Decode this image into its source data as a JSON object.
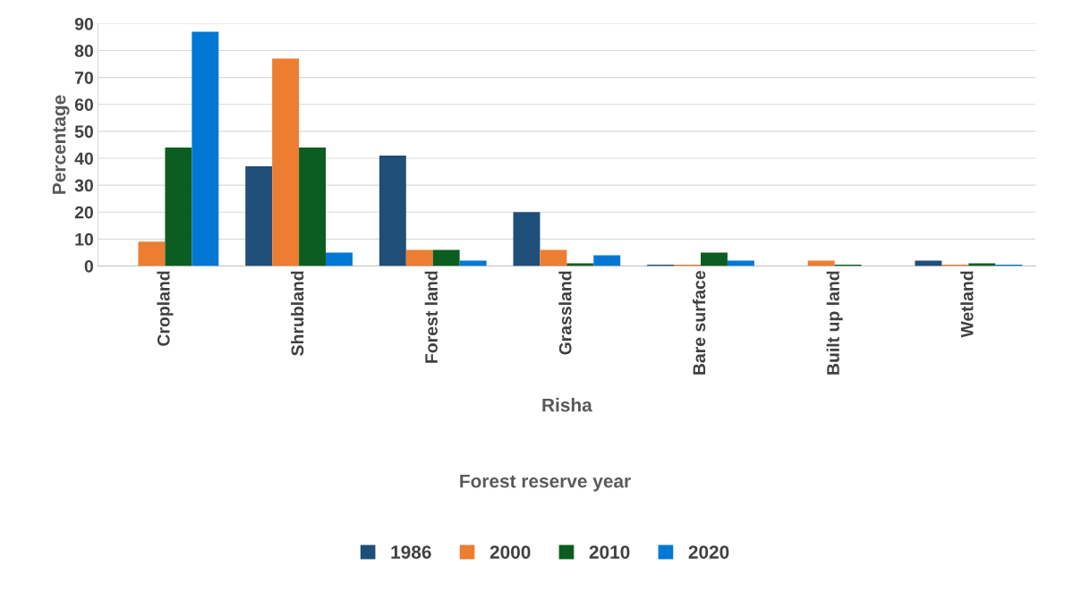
{
  "chart_data": {
    "type": "bar",
    "xlabel": "Risha",
    "ylabel": "Percentage",
    "annotations": [
      "Forest reserve year"
    ],
    "categories": [
      "Cropland",
      "Shrubland",
      "Forest land",
      "Grassland",
      "Bare surface",
      "Built up land",
      "Wetland"
    ],
    "series": [
      {
        "name": "1986",
        "color": "#1f4e79",
        "values": [
          0,
          37,
          41,
          20,
          0.5,
          0,
          2
        ]
      },
      {
        "name": "2000",
        "color": "#ed7d31",
        "values": [
          9,
          77,
          6,
          6,
          0.5,
          2,
          0.5
        ]
      },
      {
        "name": "2010",
        "color": "#0b5e1f",
        "values": [
          44,
          44,
          6,
          1,
          5,
          0.5,
          1
        ]
      },
      {
        "name": "2020",
        "color": "#0078d4",
        "values": [
          87,
          5,
          2,
          4,
          2,
          0,
          0.5
        ]
      }
    ],
    "ylim": [
      0,
      90
    ],
    "yticks": [
      0,
      10,
      20,
      30,
      40,
      50,
      60,
      70,
      80,
      90
    ],
    "grid": "y",
    "legend": "bottom"
  }
}
